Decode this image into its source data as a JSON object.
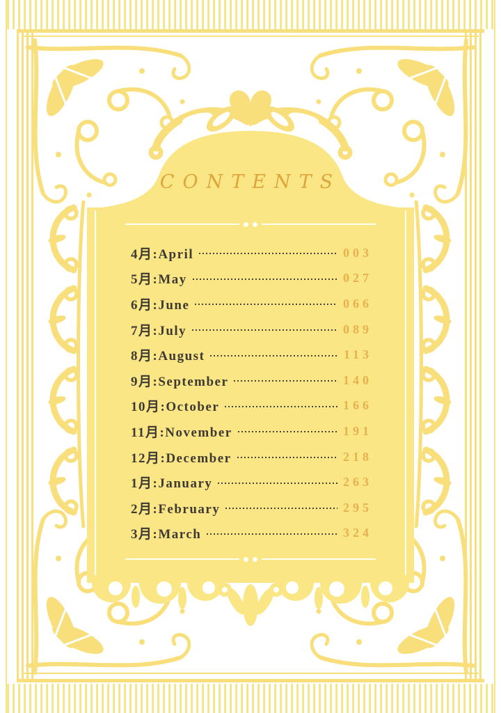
{
  "title": "CONTENTS",
  "toc": {
    "entries": [
      {
        "label": "4月:April",
        "page": "003"
      },
      {
        "label": "5月:May",
        "page": "027"
      },
      {
        "label": "6月:June",
        "page": "066"
      },
      {
        "label": "7月:July",
        "page": "089"
      },
      {
        "label": "8月:August",
        "page": "113"
      },
      {
        "label": "9月:September",
        "page": "140"
      },
      {
        "label": "10月:October",
        "page": "166"
      },
      {
        "label": "11月:November",
        "page": "191"
      },
      {
        "label": "12月:December",
        "page": "218"
      },
      {
        "label": "1月:January",
        "page": "263"
      },
      {
        "label": "2月:February",
        "page": "295"
      },
      {
        "label": "3月:March",
        "page": "324"
      }
    ]
  },
  "colors": {
    "ornament_yellow": "#F8DF7B",
    "stripe_yellow": "#F6E58C",
    "panel_yellow": "#FAE685",
    "title_gold": "#DDA53C",
    "page_number_gold": "#E8B14E",
    "label_dark": "#3E3A33",
    "leader_dot": "#454138",
    "divider_white": "#FFFEF5"
  },
  "icons": {
    "crown": "heart-crown-icon",
    "corner": "floral-corner-flourish-icon",
    "side": "scroll-chain-ornament-icon",
    "fringe": "scalloped-fringe-icon",
    "divider": "double-dot-divider"
  }
}
